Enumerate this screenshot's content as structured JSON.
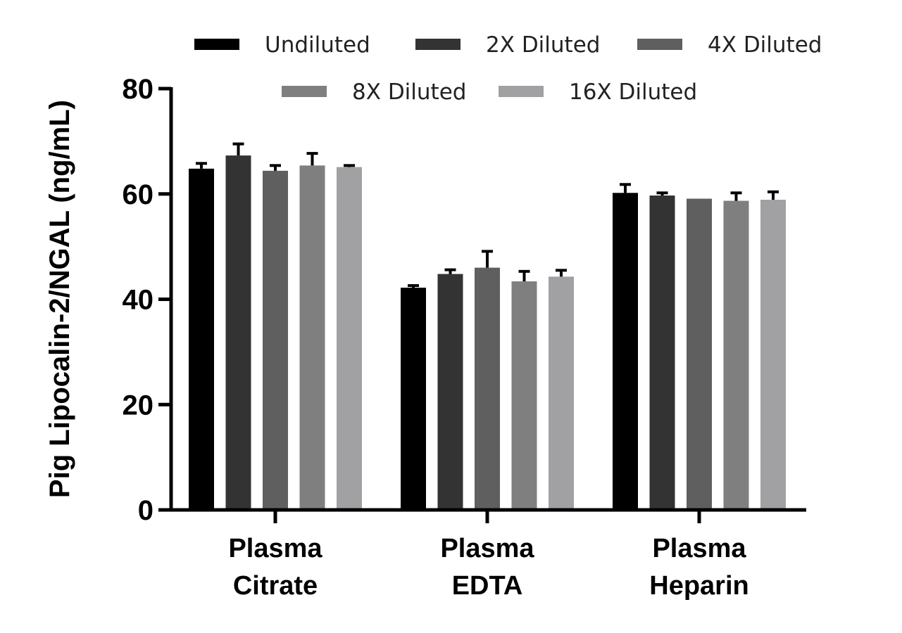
{
  "chart_data": {
    "type": "bar",
    "title": "",
    "xlabel": "",
    "ylabel": "Pig Lipocalin-2/NGAL (ng/mL)",
    "ylim": [
      0,
      80
    ],
    "yticks": [
      "0",
      "20",
      "40",
      "60",
      "80"
    ],
    "categories": [
      [
        "Plasma",
        "Citrate"
      ],
      [
        "Plasma",
        "EDTA"
      ],
      [
        "Plasma",
        "Heparin"
      ]
    ],
    "series": [
      {
        "name": "Undiluted",
        "color": "#000000",
        "values": [
          64.8,
          42.2,
          60.2
        ],
        "errors": [
          1.0,
          0.4,
          1.6
        ]
      },
      {
        "name": "2X Diluted",
        "color": "#333333",
        "values": [
          67.3,
          44.8,
          59.7
        ],
        "errors": [
          2.2,
          0.8,
          0.5
        ]
      },
      {
        "name": "4X Diluted",
        "color": "#5f5f5f",
        "values": [
          64.4,
          46.0,
          59.1
        ],
        "errors": [
          1.0,
          3.1,
          0.0
        ]
      },
      {
        "name": "8X Diluted",
        "color": "#7f7f7f",
        "values": [
          65.4,
          43.4,
          58.7
        ],
        "errors": [
          2.3,
          1.9,
          1.5
        ]
      },
      {
        "name": "16X Diluted",
        "color": "#a1a1a4",
        "values": [
          65.1,
          44.3,
          58.9
        ],
        "errors": [
          0.3,
          1.2,
          1.5
        ]
      }
    ],
    "legend_position": "top",
    "grid": false
  }
}
